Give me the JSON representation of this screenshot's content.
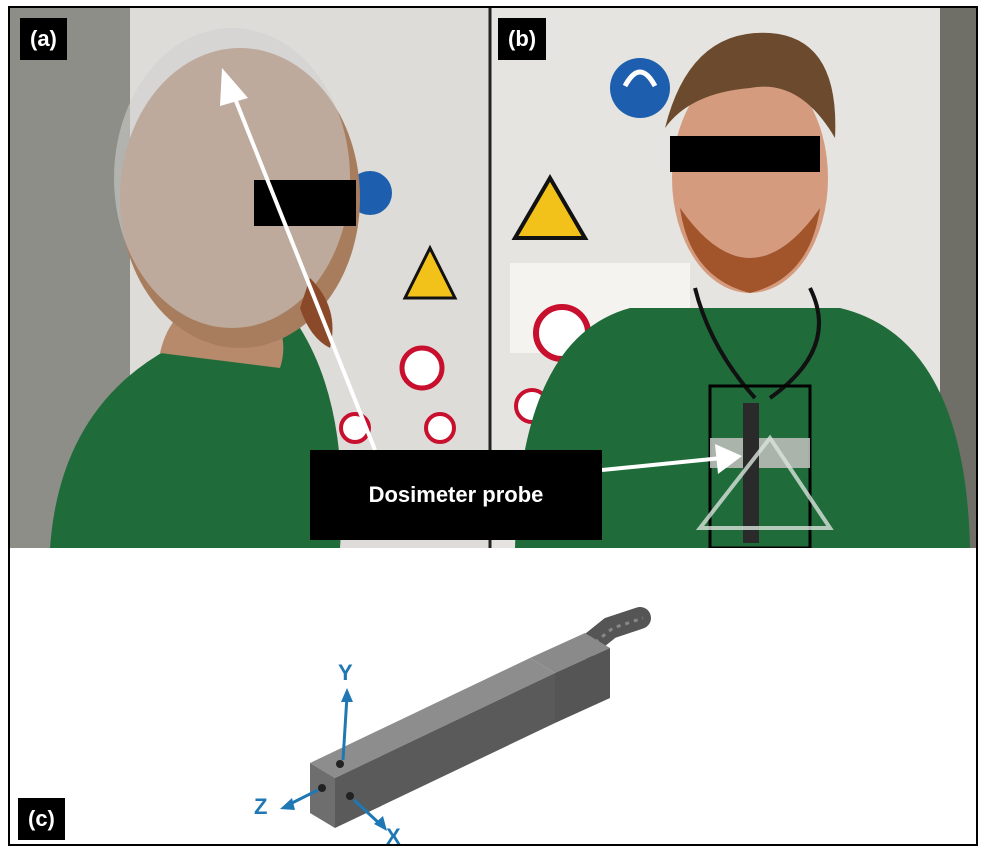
{
  "panels": {
    "a_label": "(a)",
    "b_label": "(b)",
    "c_label": "(c)"
  },
  "callout": {
    "text": "Dosimeter probe"
  },
  "probe_axes": {
    "x": "X",
    "y": "Y",
    "z": "Z"
  },
  "colors": {
    "axis_blue": "#1f78b4",
    "shirt_green": "#1f6b3a",
    "label_bg": "#000000"
  }
}
